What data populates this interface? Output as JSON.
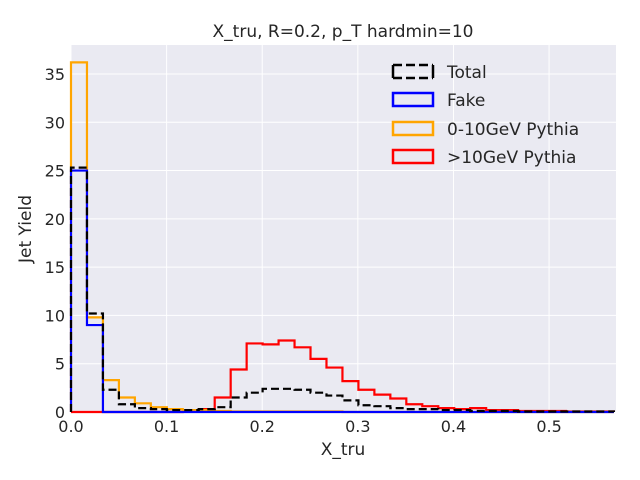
{
  "chart_data": {
    "type": "histogram-step",
    "title": "X_tru, R=0.2, p_T hardmin=10",
    "xlabel": "X_tru",
    "ylabel": "Jet Yield",
    "xlim": [
      0.0,
      0.57
    ],
    "ylim": [
      0,
      38
    ],
    "xticks": [
      0.0,
      0.1,
      0.2,
      0.3,
      0.4,
      0.5
    ],
    "xtick_labels": [
      "0.0",
      "0.1",
      "0.2",
      "0.3",
      "0.4",
      "0.5"
    ],
    "yticks": [
      0,
      5,
      10,
      15,
      20,
      25,
      30,
      35
    ],
    "ytick_labels": [
      "0",
      "5",
      "10",
      "15",
      "20",
      "25",
      "30",
      "35"
    ],
    "grid": true,
    "legend_position": "top-right",
    "bin_width": 0.0167,
    "series": [
      {
        "name": "Total",
        "color": "#000000",
        "dashed": true,
        "values": [
          25.3,
          10.2,
          2.3,
          0.8,
          0.4,
          0.3,
          0.2,
          0.2,
          0.3,
          0.5,
          1.5,
          2.0,
          2.4,
          2.4,
          2.3,
          2.0,
          1.7,
          1.2,
          0.7,
          0.6,
          0.4,
          0.3,
          0.3,
          0.2,
          0.2,
          0.1,
          0.1,
          0.1,
          0.05,
          0.05,
          0.05,
          0.05,
          0.05,
          0.05
        ]
      },
      {
        "name": "Fake",
        "color": "#0000ff",
        "dashed": false,
        "values": [
          25.0,
          9.0,
          0,
          0,
          0,
          0,
          0,
          0,
          0,
          0,
          0,
          0,
          0,
          0,
          0,
          0,
          0,
          0,
          0,
          0,
          0,
          0,
          0,
          0,
          0,
          0,
          0,
          0,
          0,
          0,
          0,
          0,
          0,
          0
        ]
      },
      {
        "name": "0-10GeV Pythia",
        "color": "#ffa500",
        "dashed": false,
        "values": [
          36.2,
          9.8,
          3.3,
          1.5,
          0.9,
          0.5,
          0.3,
          0.2,
          0.2,
          0.1,
          0.05,
          0.05,
          0.05,
          0.05,
          0.05,
          0.05,
          0.05,
          0,
          0,
          0,
          0,
          0,
          0,
          0,
          0,
          0,
          0,
          0,
          0,
          0,
          0,
          0,
          0,
          0
        ]
      },
      {
        "name": ">10GeV Pythia",
        "color": "#ff0000",
        "dashed": false,
        "values": [
          0,
          0,
          0,
          0,
          0,
          0,
          0,
          0.1,
          0.3,
          1.5,
          4.4,
          7.1,
          7.0,
          7.4,
          6.7,
          5.5,
          4.6,
          3.2,
          2.3,
          1.8,
          1.4,
          0.8,
          0.6,
          0.4,
          0.3,
          0.4,
          0.2,
          0.2,
          0.1,
          0.1,
          0.1,
          0.05,
          0.05,
          0.05
        ]
      }
    ]
  }
}
